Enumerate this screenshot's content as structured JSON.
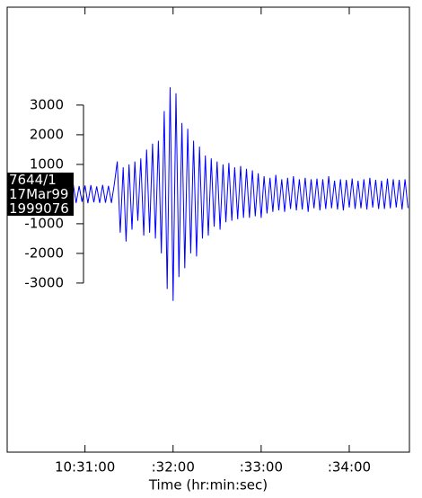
{
  "chart_data": {
    "type": "line",
    "x_label": "Time (hr:min:sec)",
    "annotations": [
      "7644/1",
      "17Mar99",
      "1999076"
    ],
    "xlim": [
      37807,
      38081
    ],
    "ylim": [
      -8700,
      6300
    ],
    "xticks": [
      {
        "value": 37860,
        "label": "10:31:00"
      },
      {
        "value": 37920,
        "label": ":32:00"
      },
      {
        "value": 37980,
        "label": ":33:00"
      },
      {
        "value": 38040,
        "label": ":34:00"
      }
    ],
    "yticks": [
      3000,
      2000,
      1000,
      -1000,
      -2000,
      -3000
    ],
    "series": [
      {
        "color": "#0000ff",
        "x": [
          37808,
          37810,
          37812,
          37814,
          37816,
          37818,
          37820,
          37822,
          37824,
          37826,
          37828,
          37830,
          37832,
          37834,
          37836,
          37838,
          37840,
          37842,
          37844,
          37846,
          37848,
          37850,
          37852,
          37854,
          37856,
          37858,
          37860,
          37862,
          37864,
          37866,
          37868,
          37870,
          37872,
          37874,
          37876,
          37878,
          37880,
          37882,
          37884,
          37886,
          37888,
          37890,
          37892,
          37894,
          37896,
          37898,
          37900,
          37902,
          37904,
          37906,
          37908,
          37910,
          37912,
          37914,
          37916,
          37918,
          37920,
          37922,
          37924,
          37926,
          37928,
          37930,
          37932,
          37934,
          37936,
          37938,
          37940,
          37942,
          37944,
          37946,
          37948,
          37950,
          37952,
          37954,
          37956,
          37958,
          37960,
          37962,
          37964,
          37966,
          37968,
          37970,
          37972,
          37974,
          37976,
          37978,
          37980,
          37982,
          37984,
          37986,
          37988,
          37990,
          37992,
          37994,
          37996,
          37998,
          38000,
          38002,
          38004,
          38006,
          38008,
          38010,
          38012,
          38014,
          38016,
          38018,
          38020,
          38022,
          38024,
          38026,
          38028,
          38030,
          38032,
          38034,
          38036,
          38038,
          38040,
          38042,
          38044,
          38046,
          38048,
          38050,
          38052,
          38054,
          38056,
          38058,
          38060,
          38062,
          38064,
          38066,
          38068,
          38070,
          38072,
          38074,
          38076,
          38078,
          38080
        ],
        "values": [
          250,
          -300,
          280,
          -260,
          320,
          -290,
          270,
          -310,
          300,
          -280,
          260,
          -300,
          290,
          -320,
          280,
          -270,
          310,
          -300,
          260,
          -290,
          300,
          -280,
          320,
          -300,
          270,
          -260,
          290,
          -310,
          300,
          -280,
          260,
          -300,
          310,
          -290,
          280,
          -300,
          350,
          1100,
          -1300,
          900,
          -1600,
          1000,
          -1200,
          1100,
          -900,
          1200,
          -1400,
          1500,
          -1300,
          1700,
          -1500,
          1800,
          -2000,
          2800,
          -3200,
          3600,
          -3600,
          3400,
          -2800,
          2400,
          -2500,
          2200,
          -2000,
          1800,
          -2100,
          1600,
          -1500,
          1300,
          -1400,
          1200,
          -1100,
          1100,
          -1200,
          1000,
          -950,
          1050,
          -900,
          900,
          -850,
          950,
          -800,
          850,
          -800,
          800,
          -750,
          700,
          -800,
          600,
          -650,
          550,
          -600,
          650,
          -550,
          500,
          -600,
          550,
          -500,
          600,
          -550,
          500,
          -520,
          550,
          -600,
          500,
          -480,
          520,
          -550,
          500,
          -500,
          600,
          -480,
          450,
          -520,
          500,
          -550,
          480,
          -450,
          520,
          -500,
          450,
          -480,
          500,
          -520,
          550,
          -450,
          480,
          -500,
          450,
          -500,
          520,
          -480,
          500,
          -450,
          480,
          -520,
          500,
          -470
        ]
      }
    ]
  }
}
